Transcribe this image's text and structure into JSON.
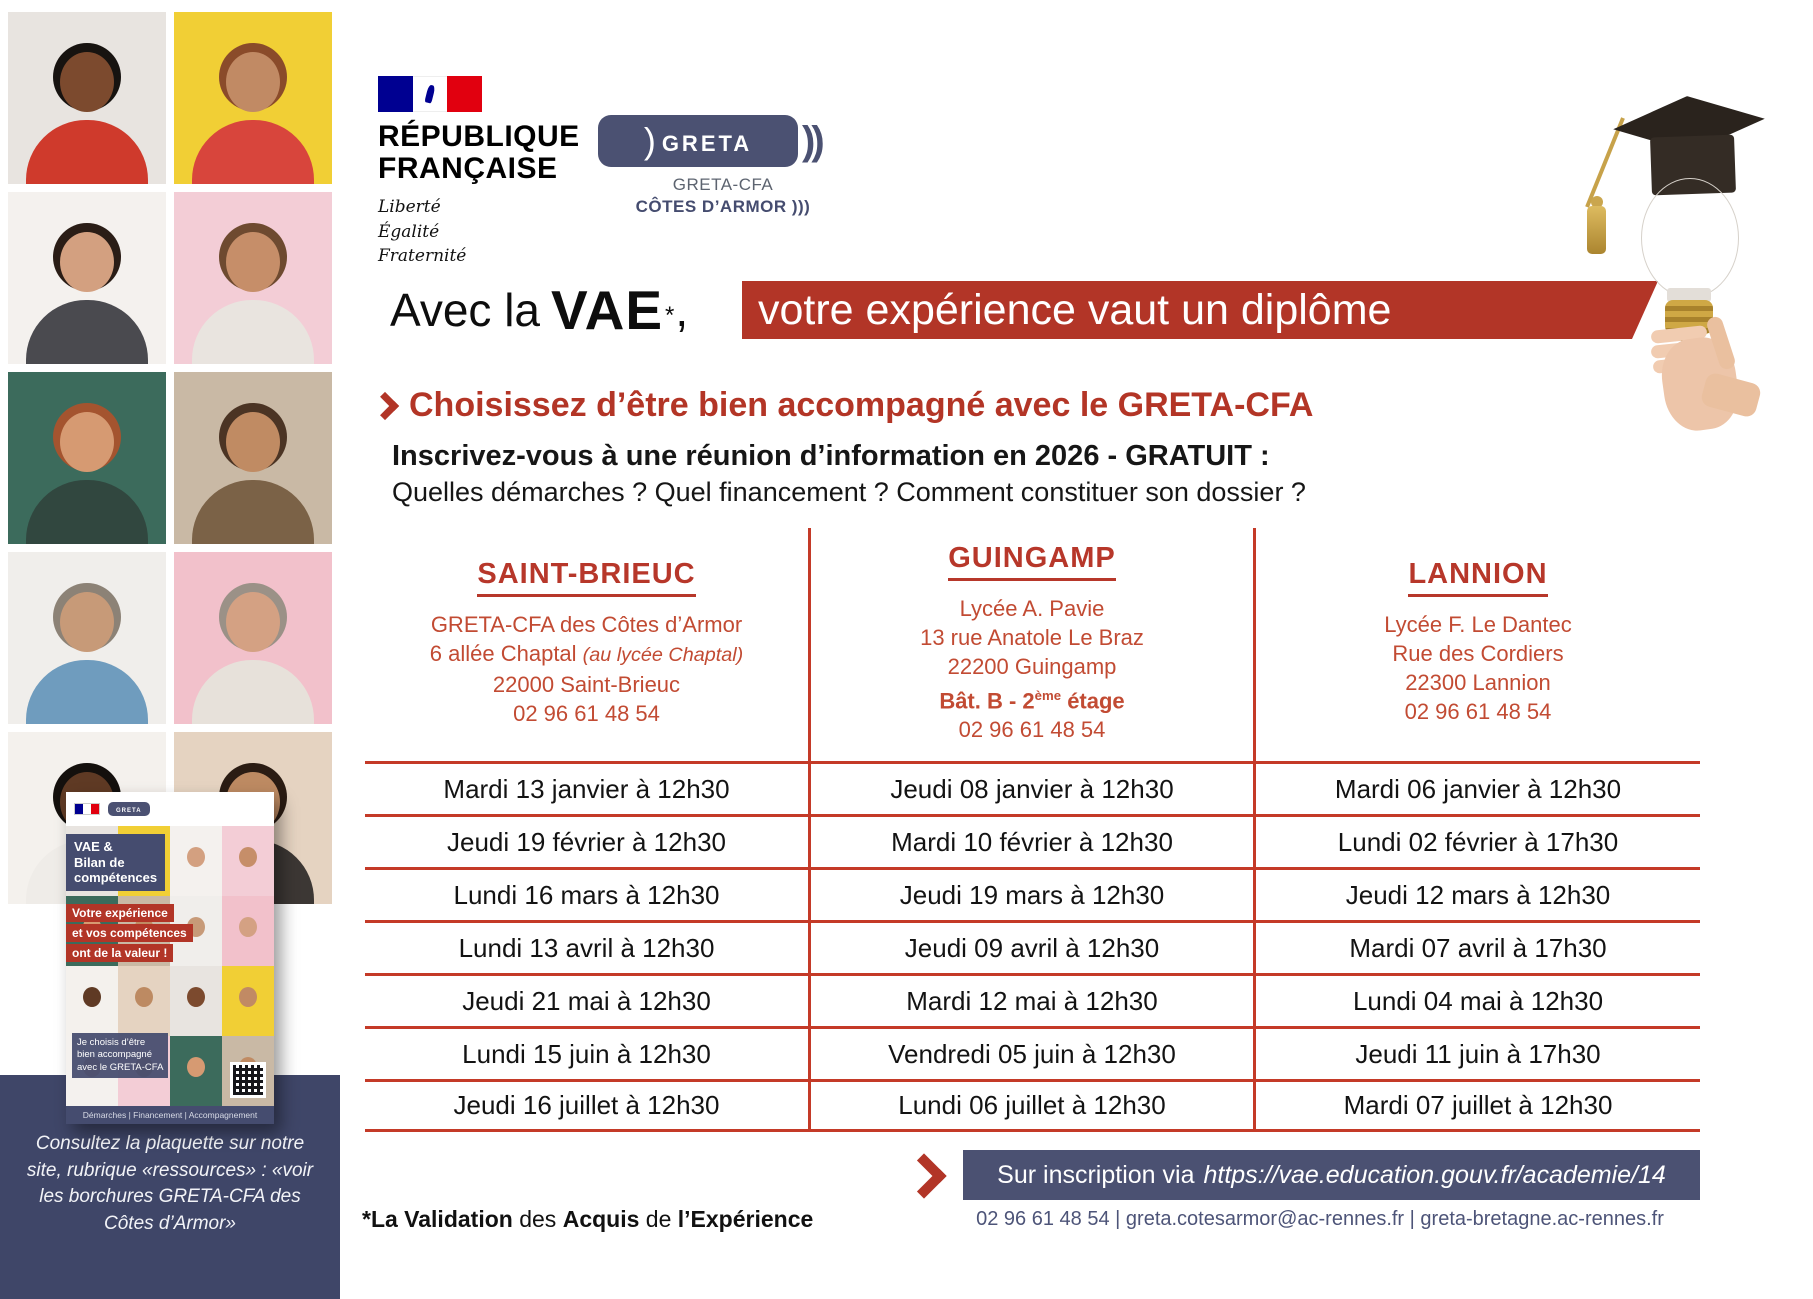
{
  "header": {
    "republique": {
      "line1": "RÉPUBLIQUE",
      "line2": "FRANÇAISE",
      "motto_lines": [
        "Liberté",
        "Égalité",
        "Fraternité"
      ]
    },
    "greta": {
      "logo_text": "greta",
      "sub1": "GRETA-CFA",
      "sub2": "CÔTES D’ARMOR )))"
    }
  },
  "title": {
    "black_prefix": "Avec la",
    "vae": "VAE",
    "footnote_marker": "*",
    "comma": ",",
    "highlight": "votre expérience vaut un diplôme"
  },
  "subtitle": "Choisissez d’être bien accompagné avec le GRETA-CFA",
  "intro": {
    "bold_line": "Inscrivez-vous à une réunion d’information en 2026 - GRATUIT :",
    "questions_line": "Quelles démarches ? Quel financement ? Comment constituer son dossier ?"
  },
  "locations": [
    {
      "name": "SAINT-BRIEUC",
      "lines": [
        {
          "text": "GRETA-CFA des Côtes d’Armor"
        },
        {
          "text": "6 allée Chaptal ",
          "italic": "(au lycée Chaptal)"
        },
        {
          "text": "22000 Saint-Brieuc"
        },
        {
          "text": "02 96 61 48 54"
        }
      ]
    },
    {
      "name": "GUINGAMP",
      "lines": [
        {
          "text": "Lycée A. Pavie"
        },
        {
          "text": "13 rue Anatole Le Braz"
        },
        {
          "text": "22200 Guingamp"
        },
        {
          "text": "Bât. B - 2",
          "sup": "ème",
          "after": " étage",
          "bold": true
        },
        {
          "text": "02 96 61 48 54"
        }
      ]
    },
    {
      "name": "LANNION",
      "lines": [
        {
          "text": "Lycée F. Le Dantec"
        },
        {
          "text": "Rue des Cordiers"
        },
        {
          "text": "22300 Lannion"
        },
        {
          "text": "02 96 61 48 54"
        }
      ]
    }
  ],
  "schedule_rows": [
    [
      "Mardi 13 janvier à 12h30",
      "Jeudi 08 janvier à 12h30",
      "Mardi 06 janvier à 12h30"
    ],
    [
      "Jeudi 19 février à 12h30",
      "Mardi 10 février à 12h30",
      "Lundi 02 février à 17h30"
    ],
    [
      "Lundi 16 mars à 12h30",
      "Jeudi 19 mars à 12h30",
      "Jeudi 12 mars à 12h30"
    ],
    [
      "Lundi 13 avril à 12h30",
      "Jeudi 09 avril à 12h30",
      "Mardi 07 avril à 17h30"
    ],
    [
      "Jeudi 21 mai à 12h30",
      "Mardi 12 mai à 12h30",
      "Lundi 04 mai à 12h30"
    ],
    [
      "Lundi 15 juin à 12h30",
      "Vendredi 05 juin à 12h30",
      "Jeudi 11 juin à 17h30"
    ],
    [
      "Jeudi 16 juillet à 12h30",
      "Lundi 06 juillet à 12h30",
      "Mardi 07 juillet à 12h30"
    ]
  ],
  "footer": {
    "signup_prefix": "Sur inscription via",
    "signup_url": "https://vae.education.gouv.fr/academie/14",
    "footnote_parts": [
      {
        "text": "*La Validation",
        "bold": true
      },
      {
        "text": " des "
      },
      {
        "text": "Acquis",
        "bold": true
      },
      {
        "text": " de "
      },
      {
        "text": "l’Expérience",
        "bold": true
      }
    ],
    "contacts": [
      "02 96 61 48 54",
      "greta.cotesarmor@ac-rennes.fr",
      "greta-bretagne.ac-rennes.fr"
    ],
    "contact_separator": "|"
  },
  "sidebar": {
    "caption": "Consultez la plaquette sur notre site, rubrique «ressources» : «voir les borchures GRETA-CFA des Côtes d’Armor»",
    "brochure": {
      "title_lines": [
        "VAE &",
        "Bilan de",
        "compétences"
      ],
      "ribbon_lines": [
        "Votre expérience",
        "et vos compétences",
        "ont de la valeur !"
      ],
      "choose_lines": [
        "Je choisis d’être",
        "bien accompagné",
        "avec le GRETA-CFA"
      ],
      "bottom_strip": "Démarches | Financement | Accompagnement"
    },
    "photos": [
      {
        "bg": "#e8e4e0",
        "top": "#cf3a2c",
        "skin": "#7c4a2e",
        "hair": "#171310"
      },
      {
        "bg": "#f1cf35",
        "top": "#d8453c",
        "skin": "#c18a64",
        "hair": "#8a4b2a"
      },
      {
        "bg": "#f4f1ee",
        "top": "#4a4a4f",
        "skin": "#d3a080",
        "hair": "#2a1d16"
      },
      {
        "bg": "#f3cdd6",
        "top": "#e9e4df",
        "skin": "#c68e69",
        "hair": "#6e4a30"
      },
      {
        "bg": "#3c6b5c",
        "top": "#31473f",
        "skin": "#d69a72",
        "hair": "#a4542f"
      },
      {
        "bg": "#c9b9a5",
        "top": "#7b6247",
        "skin": "#c08b63",
        "hair": "#4b3424"
      },
      {
        "bg": "#f0eeeb",
        "top": "#6f9cbe",
        "skin": "#c79a78",
        "hair": "#8c8276"
      },
      {
        "bg": "#f2c1cb",
        "top": "#e7e1da",
        "skin": "#d4a183",
        "hair": "#9b9187"
      },
      {
        "bg": "#f4f1ed",
        "top": "#efece8",
        "skin": "#5f3a24",
        "hair": "#14100d"
      },
      {
        "bg": "#e5d3c1",
        "top": "#3c3734",
        "skin": "#bd8a62",
        "hair": "#2b1c13"
      }
    ]
  },
  "colors": {
    "accent_red": "#b23527",
    "table_line_red": "#c43a28",
    "address_red": "#c24b33",
    "navy": "#4b5172",
    "panel_navy": "#3f4668"
  }
}
